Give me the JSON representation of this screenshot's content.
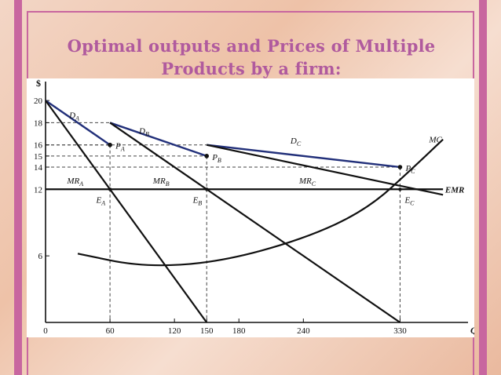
{
  "slide": {
    "title_line1": "Optimal outputs and Prices of Multiple",
    "title_line2": "Products by a firm:",
    "accent_color": "#c8669f",
    "title_color": "#b05a9e"
  },
  "chart_data": {
    "type": "line",
    "xlabel": "Q",
    "ylabel": "$",
    "xlim": [
      0,
      375
    ],
    "ylim": [
      0,
      21
    ],
    "x_ticks": [
      "0",
      "60",
      "120",
      "150",
      "180",
      "240",
      "330"
    ],
    "y_ticks": [
      "20",
      "18",
      "16",
      "15",
      "14",
      "12",
      "6"
    ],
    "demand_color": "#22307a",
    "series": [
      {
        "name": "DA",
        "sub": "A",
        "color": "#22307a",
        "points": [
          [
            0,
            20
          ],
          [
            60,
            16
          ]
        ]
      },
      {
        "name": "MRA",
        "sub": "A",
        "color": "#111111",
        "points": [
          [
            0,
            20
          ],
          [
            150,
            0
          ]
        ]
      },
      {
        "name": "DB",
        "sub": "B",
        "color": "#22307a",
        "points": [
          [
            60,
            18
          ],
          [
            150,
            15
          ]
        ]
      },
      {
        "name": "MRB",
        "sub": "B",
        "color": "#111111",
        "points": [
          [
            60,
            18
          ],
          [
            330,
            0
          ]
        ]
      },
      {
        "name": "DC",
        "sub": "C",
        "color": "#22307a",
        "points": [
          [
            150,
            16
          ],
          [
            330,
            14
          ]
        ]
      },
      {
        "name": "MRC",
        "sub": "C",
        "color": "#111111",
        "points": [
          [
            150,
            16
          ],
          [
            370,
            11.5
          ]
        ]
      },
      {
        "name": "EMR",
        "sub": "",
        "color": "#111111",
        "points": [
          [
            0,
            12
          ],
          [
            370,
            12
          ]
        ]
      },
      {
        "name": "MC",
        "sub": "",
        "color": "#111111",
        "points": [
          [
            30,
            6.2
          ],
          [
            90,
            5
          ],
          [
            160,
            5.4
          ],
          [
            240,
            7.5
          ],
          [
            300,
            10.2
          ],
          [
            345,
            14.2
          ],
          [
            370,
            16.5
          ]
        ]
      }
    ],
    "price_points": [
      {
        "label": "P",
        "sub": "A",
        "x": 60,
        "y": 16
      },
      {
        "label": "P",
        "sub": "B",
        "x": 150,
        "y": 15
      },
      {
        "label": "P",
        "sub": "C",
        "x": 330,
        "y": 14
      }
    ],
    "equilibria": [
      {
        "label": "E",
        "sub": "A",
        "x": 60,
        "y": 12
      },
      {
        "label": "E",
        "sub": "B",
        "x": 150,
        "y": 12
      },
      {
        "label": "E",
        "sub": "C",
        "x": 330,
        "y": 12
      }
    ],
    "curve_labels": [
      {
        "label": "D",
        "sub": "A",
        "x": 22,
        "y": 18.7
      },
      {
        "label": "D",
        "sub": "B",
        "x": 87,
        "y": 17.3
      },
      {
        "label": "D",
        "sub": "C",
        "x": 228,
        "y": 16.4
      },
      {
        "label": "MR",
        "sub": "A",
        "x": 20,
        "y": 12.8
      },
      {
        "label": "MR",
        "sub": "B",
        "x": 100,
        "y": 12.8
      },
      {
        "label": "MR",
        "sub": "C",
        "x": 236,
        "y": 12.8
      },
      {
        "label": "MC",
        "sub": "",
        "x": 357,
        "y": 16.5
      },
      {
        "label": "EMR",
        "sub": "",
        "x": 372,
        "y": 12
      }
    ]
  }
}
